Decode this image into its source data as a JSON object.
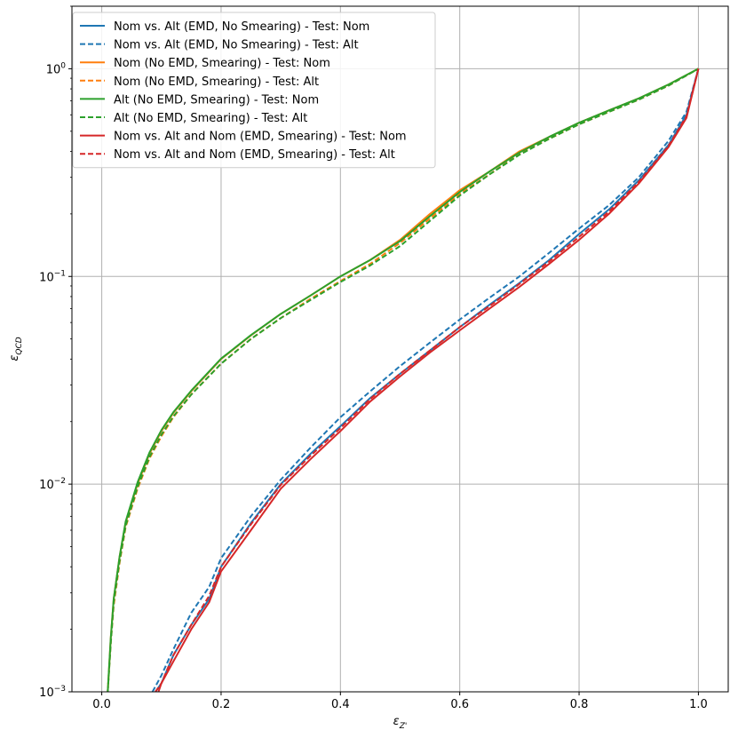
{
  "chart_data": {
    "type": "line",
    "xlabel": "ε",
    "xlabel_sub": "Z'",
    "ylabel": "ε",
    "ylabel_sub": "QCD",
    "xlim": [
      -0.05,
      1.05
    ],
    "ylim": [
      0.001,
      2
    ],
    "yscale": "log",
    "grid": true,
    "legend_position": "upper-left",
    "x_ticks": [
      0.0,
      0.2,
      0.4,
      0.6,
      0.8,
      1.0
    ],
    "x_tick_labels": [
      "0.0",
      "0.2",
      "0.4",
      "0.6",
      "0.8",
      "1.0"
    ],
    "y_ticks": [
      0.001,
      0.01,
      0.1,
      1
    ],
    "y_tick_labels": [
      {
        "base": "10",
        "exp": "−3"
      },
      {
        "base": "10",
        "exp": "−2"
      },
      {
        "base": "10",
        "exp": "−1"
      },
      {
        "base": "10",
        "exp": "0"
      }
    ],
    "series": [
      {
        "name": "Nom vs. Alt (EMD, No Smearing) - Test: Nom",
        "color": "#1f77b4",
        "dash": "solid",
        "x": [
          0.09,
          0.1,
          0.12,
          0.15,
          0.18,
          0.2,
          0.25,
          0.3,
          0.35,
          0.4,
          0.45,
          0.5,
          0.55,
          0.6,
          0.65,
          0.7,
          0.75,
          0.8,
          0.85,
          0.9,
          0.95,
          0.98,
          1.0
        ],
        "y": [
          0.001,
          0.0011,
          0.0015,
          0.0021,
          0.0028,
          0.004,
          0.0065,
          0.01,
          0.014,
          0.019,
          0.026,
          0.034,
          0.044,
          0.057,
          0.073,
          0.093,
          0.12,
          0.16,
          0.21,
          0.29,
          0.43,
          0.6,
          1.0
        ]
      },
      {
        "name": "Nom vs. Alt (EMD, No Smearing) - Test: Alt",
        "color": "#1f77b4",
        "dash": "dashed",
        "x": [
          0.085,
          0.1,
          0.12,
          0.15,
          0.18,
          0.2,
          0.25,
          0.3,
          0.35,
          0.4,
          0.45,
          0.5,
          0.55,
          0.6,
          0.65,
          0.7,
          0.75,
          0.8,
          0.85,
          0.9,
          0.95,
          0.98,
          1.0
        ],
        "y": [
          0.001,
          0.0012,
          0.0016,
          0.0024,
          0.0032,
          0.0044,
          0.007,
          0.0105,
          0.015,
          0.021,
          0.028,
          0.037,
          0.048,
          0.062,
          0.079,
          0.1,
          0.13,
          0.17,
          0.22,
          0.3,
          0.45,
          0.62,
          1.0
        ]
      },
      {
        "name": "Nom (No EMD, Smearing) - Test: Nom",
        "color": "#ff7f0e",
        "dash": "solid",
        "x": [
          0.01,
          0.015,
          0.02,
          0.03,
          0.04,
          0.06,
          0.08,
          0.1,
          0.12,
          0.15,
          0.2,
          0.25,
          0.3,
          0.35,
          0.4,
          0.45,
          0.5,
          0.55,
          0.6,
          0.65,
          0.7,
          0.75,
          0.8,
          0.85,
          0.9,
          0.95,
          1.0
        ],
        "y": [
          0.001,
          0.0018,
          0.0028,
          0.0045,
          0.0065,
          0.01,
          0.014,
          0.018,
          0.022,
          0.028,
          0.04,
          0.052,
          0.066,
          0.081,
          0.1,
          0.12,
          0.15,
          0.2,
          0.26,
          0.32,
          0.4,
          0.47,
          0.55,
          0.63,
          0.72,
          0.84,
          1.0
        ]
      },
      {
        "name": "Nom (No EMD, Smearing) - Test: Alt",
        "color": "#ff7f0e",
        "dash": "dashed",
        "x": [
          0.01,
          0.015,
          0.02,
          0.03,
          0.04,
          0.06,
          0.08,
          0.1,
          0.12,
          0.15,
          0.2,
          0.25,
          0.3,
          0.35,
          0.4,
          0.45,
          0.5,
          0.55,
          0.6,
          0.65,
          0.7,
          0.75,
          0.8,
          0.85,
          0.9,
          0.95,
          1.0
        ],
        "y": [
          0.001,
          0.0017,
          0.0026,
          0.0042,
          0.0062,
          0.0095,
          0.0133,
          0.017,
          0.021,
          0.027,
          0.038,
          0.05,
          0.063,
          0.078,
          0.095,
          0.115,
          0.145,
          0.19,
          0.25,
          0.31,
          0.39,
          0.46,
          0.54,
          0.62,
          0.71,
          0.83,
          1.0
        ]
      },
      {
        "name": "Alt (No EMD, Smearing) - Test: Nom",
        "color": "#2ca02c",
        "dash": "solid",
        "x": [
          0.01,
          0.015,
          0.02,
          0.03,
          0.04,
          0.06,
          0.08,
          0.1,
          0.12,
          0.15,
          0.2,
          0.25,
          0.3,
          0.35,
          0.4,
          0.45,
          0.5,
          0.55,
          0.6,
          0.65,
          0.7,
          0.75,
          0.8,
          0.85,
          0.9,
          0.95,
          1.0
        ],
        "y": [
          0.001,
          0.0018,
          0.0028,
          0.0045,
          0.0066,
          0.0102,
          0.0142,
          0.0182,
          0.0222,
          0.0282,
          0.0402,
          0.0522,
          0.066,
          0.081,
          0.1,
          0.12,
          0.148,
          0.195,
          0.255,
          0.32,
          0.395,
          0.47,
          0.55,
          0.63,
          0.72,
          0.84,
          1.0
        ]
      },
      {
        "name": "Alt (No EMD, Smearing) - Test: Alt",
        "color": "#2ca02c",
        "dash": "dashed",
        "x": [
          0.01,
          0.015,
          0.02,
          0.03,
          0.04,
          0.06,
          0.08,
          0.1,
          0.12,
          0.15,
          0.2,
          0.25,
          0.3,
          0.35,
          0.4,
          0.45,
          0.5,
          0.55,
          0.6,
          0.65,
          0.7,
          0.75,
          0.8,
          0.85,
          0.9,
          0.95,
          1.0
        ],
        "y": [
          0.001,
          0.0017,
          0.0027,
          0.0043,
          0.0063,
          0.0097,
          0.0135,
          0.0173,
          0.0212,
          0.027,
          0.038,
          0.05,
          0.063,
          0.077,
          0.094,
          0.113,
          0.14,
          0.185,
          0.245,
          0.31,
          0.385,
          0.46,
          0.54,
          0.62,
          0.71,
          0.83,
          1.0
        ]
      },
      {
        "name": "Nom vs. Alt and Nom (EMD, Smearing) - Test: Nom",
        "color": "#d62728",
        "dash": "solid",
        "x": [
          0.095,
          0.1,
          0.12,
          0.15,
          0.18,
          0.2,
          0.25,
          0.3,
          0.35,
          0.4,
          0.45,
          0.5,
          0.55,
          0.6,
          0.65,
          0.7,
          0.75,
          0.8,
          0.85,
          0.9,
          0.95,
          0.98,
          1.0
        ],
        "y": [
          0.001,
          0.0011,
          0.0014,
          0.002,
          0.0027,
          0.0038,
          0.006,
          0.0095,
          0.0132,
          0.018,
          0.025,
          0.033,
          0.043,
          0.055,
          0.07,
          0.089,
          0.115,
          0.15,
          0.2,
          0.28,
          0.42,
          0.58,
          1.0
        ]
      },
      {
        "name": "Nom vs. Alt and Nom (EMD, Smearing) - Test: Alt",
        "color": "#d62728",
        "dash": "dashed",
        "x": [
          0.09,
          0.1,
          0.12,
          0.15,
          0.18,
          0.2,
          0.25,
          0.3,
          0.35,
          0.4,
          0.45,
          0.5,
          0.55,
          0.6,
          0.65,
          0.7,
          0.75,
          0.8,
          0.85,
          0.9,
          0.95,
          0.98,
          1.0
        ],
        "y": [
          0.001,
          0.0011,
          0.0015,
          0.0021,
          0.0029,
          0.004,
          0.0064,
          0.0099,
          0.0137,
          0.0186,
          0.0257,
          0.034,
          0.044,
          0.057,
          0.072,
          0.092,
          0.118,
          0.155,
          0.205,
          0.285,
          0.425,
          0.59,
          1.0
        ]
      }
    ]
  }
}
